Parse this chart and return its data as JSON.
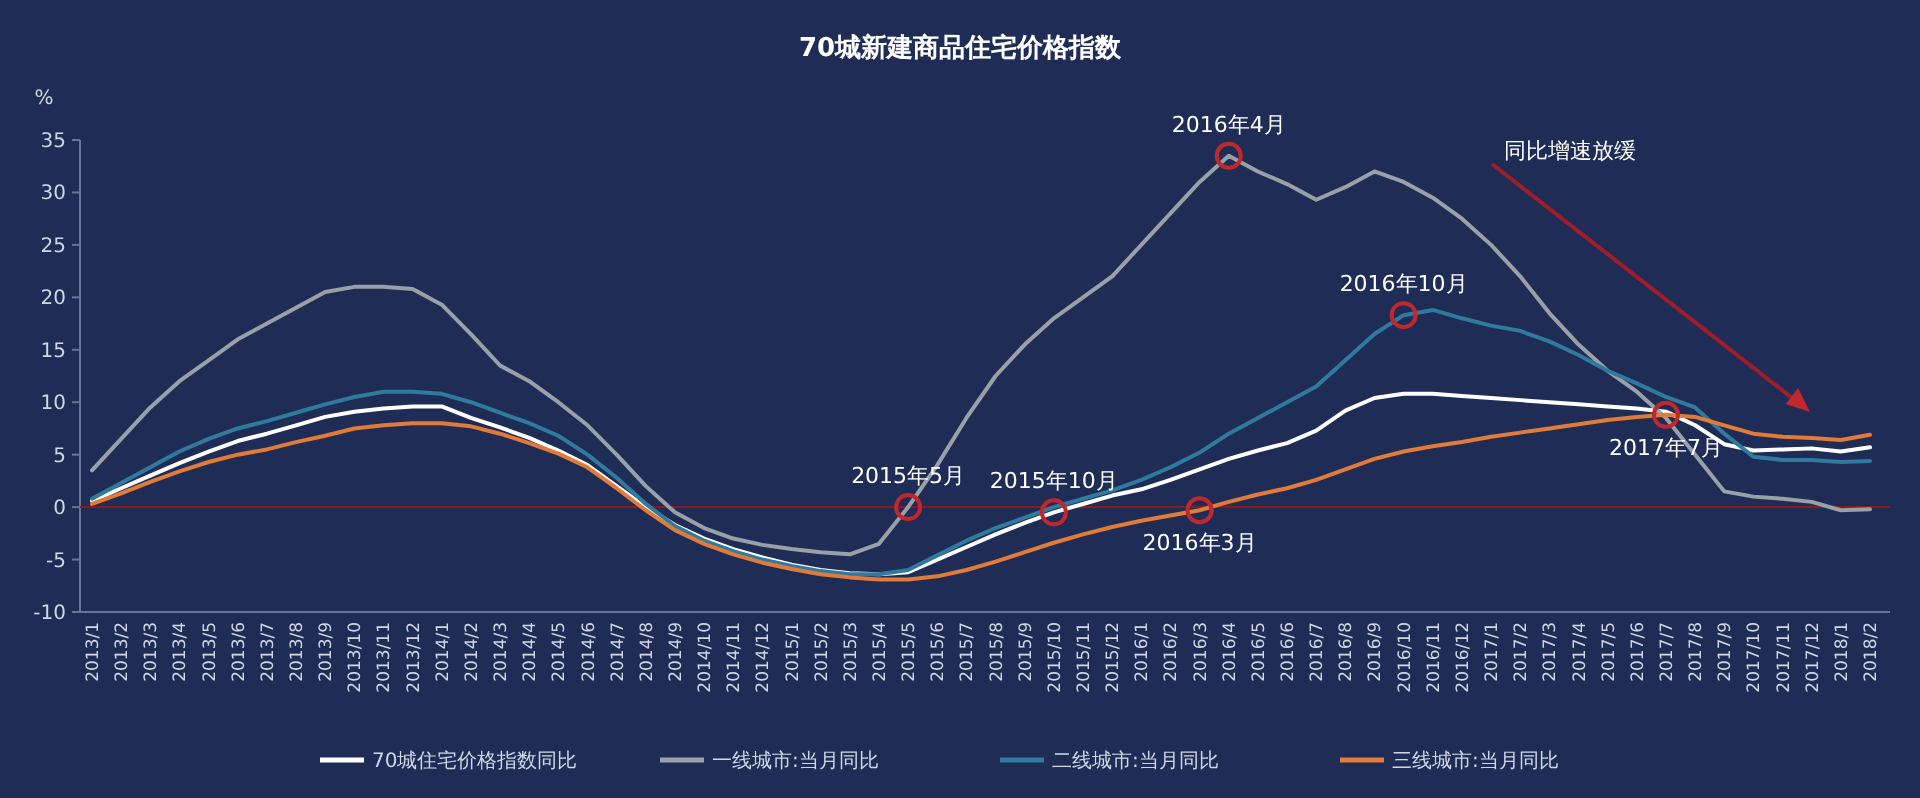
{
  "chart_data": {
    "type": "line",
    "title": "70城新建商品住宅价格指数",
    "ylabel": "%",
    "categories": [
      "2013/1",
      "2013/2",
      "2013/3",
      "2013/4",
      "2013/5",
      "2013/6",
      "2013/7",
      "2013/8",
      "2013/9",
      "2013/10",
      "2013/11",
      "2013/12",
      "2014/1",
      "2014/2",
      "2014/3",
      "2014/4",
      "2014/5",
      "2014/6",
      "2014/7",
      "2014/8",
      "2014/9",
      "2014/10",
      "2014/11",
      "2014/12",
      "2015/1",
      "2015/2",
      "2015/3",
      "2015/4",
      "2015/5",
      "2015/6",
      "2015/7",
      "2015/8",
      "2015/9",
      "2015/10",
      "2015/11",
      "2015/12",
      "2016/1",
      "2016/2",
      "2016/3",
      "2016/4",
      "2016/5",
      "2016/6",
      "2016/7",
      "2016/8",
      "2016/9",
      "2016/10",
      "2016/11",
      "2016/12",
      "2017/1",
      "2017/2",
      "2017/3",
      "2017/4",
      "2017/5",
      "2017/6",
      "2017/7",
      "2017/8",
      "2017/9",
      "2017/10",
      "2017/11",
      "2017/12",
      "2018/1",
      "2018/2"
    ],
    "series": [
      {
        "name": "70城住宅价格指数同比",
        "color": "#ffffff",
        "values": [
          0.6,
          1.8,
          3.0,
          4.2,
          5.3,
          6.3,
          7.0,
          7.8,
          8.6,
          9.1,
          9.4,
          9.6,
          9.6,
          8.5,
          7.6,
          6.6,
          5.4,
          4.0,
          2.0,
          0.0,
          -1.7,
          -3.0,
          -4.0,
          -4.8,
          -5.5,
          -6.0,
          -6.3,
          -6.4,
          -6.2,
          -5.0,
          -3.8,
          -2.6,
          -1.5,
          -0.5,
          0.3,
          1.1,
          1.7,
          2.6,
          3.6,
          4.6,
          5.4,
          6.1,
          7.3,
          9.2,
          10.4,
          10.8,
          10.8,
          10.6,
          10.4,
          10.2,
          10.0,
          9.8,
          9.6,
          9.4,
          9.1,
          7.8,
          6.0,
          5.4,
          5.5,
          5.6,
          5.3,
          5.7
        ]
      },
      {
        "name": "一线城市:当月同比",
        "color": "#9aa0a8",
        "values": [
          3.5,
          6.5,
          9.5,
          12,
          14,
          16,
          17.5,
          19,
          20.5,
          21,
          21,
          20.8,
          19.3,
          16.5,
          13.5,
          12,
          10,
          7.8,
          5,
          2,
          -0.5,
          -2,
          -3,
          -3.6,
          -4,
          -4.3,
          -4.5,
          -3.5,
          0,
          4,
          8.5,
          12.5,
          15.5,
          18,
          20,
          22,
          25,
          28,
          31,
          33.5,
          32,
          30.8,
          29.3,
          30.5,
          32,
          31,
          29.5,
          27.5,
          25,
          22,
          18.5,
          15.5,
          13,
          11,
          8.5,
          5,
          1.5,
          1,
          0.8,
          0.5,
          -0.3,
          -0.2
        ]
      },
      {
        "name": "二线城市:当月同比",
        "color": "#2f7a9e",
        "values": [
          0.8,
          2.3,
          3.8,
          5.3,
          6.5,
          7.5,
          8.2,
          9.0,
          9.8,
          10.5,
          11.0,
          11.0,
          10.8,
          10.0,
          9.0,
          8.0,
          6.8,
          5.0,
          2.8,
          0.3,
          -1.8,
          -3.2,
          -4.2,
          -5.0,
          -5.6,
          -6.1,
          -6.4,
          -6.4,
          -6.0,
          -4.6,
          -3.2,
          -2.0,
          -1.0,
          0.0,
          0.8,
          1.6,
          2.6,
          3.8,
          5.2,
          7.0,
          8.5,
          10.0,
          11.5,
          14.0,
          16.5,
          18.3,
          18.8,
          18.0,
          17.3,
          16.8,
          15.8,
          14.5,
          13.0,
          11.8,
          10.5,
          9.5,
          7.0,
          4.8,
          4.5,
          4.5,
          4.3,
          4.4
        ]
      },
      {
        "name": "三线城市:当月同比",
        "color": "#e07b39",
        "values": [
          0.3,
          1.3,
          2.4,
          3.4,
          4.3,
          5.0,
          5.5,
          6.2,
          6.8,
          7.5,
          7.8,
          8.0,
          8.0,
          7.7,
          7.0,
          6.1,
          5.1,
          3.8,
          1.8,
          -0.3,
          -2.2,
          -3.5,
          -4.5,
          -5.3,
          -5.9,
          -6.4,
          -6.7,
          -6.9,
          -6.9,
          -6.6,
          -6.0,
          -5.2,
          -4.3,
          -3.4,
          -2.6,
          -1.9,
          -1.3,
          -0.8,
          -0.3,
          0.5,
          1.2,
          1.8,
          2.6,
          3.6,
          4.6,
          5.3,
          5.8,
          6.2,
          6.7,
          7.1,
          7.5,
          7.9,
          8.3,
          8.6,
          8.8,
          8.6,
          7.8,
          7.0,
          6.7,
          6.6,
          6.4,
          6.9
        ]
      }
    ],
    "ylim": [
      -10,
      35
    ],
    "yticks": [
      -10,
      -5,
      0,
      5,
      10,
      15,
      20,
      25,
      30,
      35
    ],
    "ref_lines": [
      {
        "axis": "y",
        "value": 0,
        "color": "#8b1a1a"
      }
    ],
    "annotations": [
      {
        "text": "2016年4月",
        "x": "2016/4",
        "y": 33.5
      },
      {
        "text": "2016年10月",
        "x": "2016/10",
        "y": 18.3
      },
      {
        "text": "2015年5月",
        "x": "2015/5",
        "y": 0
      },
      {
        "text": "2015年10月",
        "x": "2015/10",
        "y": -0.5
      },
      {
        "text": "2016年3月",
        "x": "2016/3",
        "y": -0.3
      },
      {
        "text": "2017年7月",
        "x": "2017/7",
        "y": 8.8
      },
      "同比增速放缓"
    ],
    "grid": false,
    "legend": "bottom",
    "marker": "none",
    "line_style": "solid"
  }
}
